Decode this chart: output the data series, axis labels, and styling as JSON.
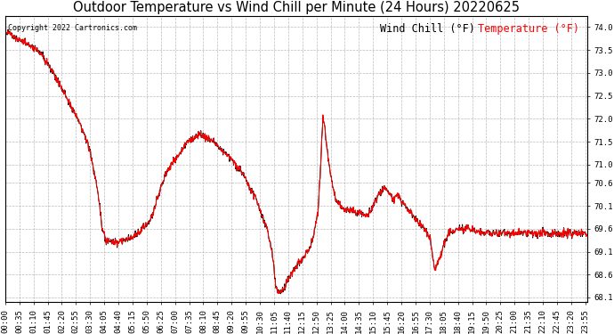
{
  "title": "Outdoor Temperature vs Wind Chill per Minute (24 Hours) 20220625",
  "copyright_text": "Copyright 2022 Cartronics.com",
  "legend_wind_chill": "Wind Chill (°F)",
  "legend_temperature": "Temperature (°F)",
  "wind_chill_color": "#000000",
  "temperature_color": "#ff0000",
  "background_color": "#ffffff",
  "grid_color": "#aaaaaa",
  "ylim": [
    68.0,
    74.25
  ],
  "yticks": [
    68.1,
    68.6,
    69.1,
    69.6,
    70.1,
    70.6,
    71.0,
    71.5,
    72.0,
    72.5,
    73.0,
    73.5,
    74.0
  ],
  "title_fontsize": 10.5,
  "tick_fontsize": 6.5,
  "legend_fontsize": 8.5,
  "copyright_fontsize": 6,
  "tick_step_minutes": 35,
  "figwidth": 6.9,
  "figheight": 3.75,
  "dpi": 100
}
